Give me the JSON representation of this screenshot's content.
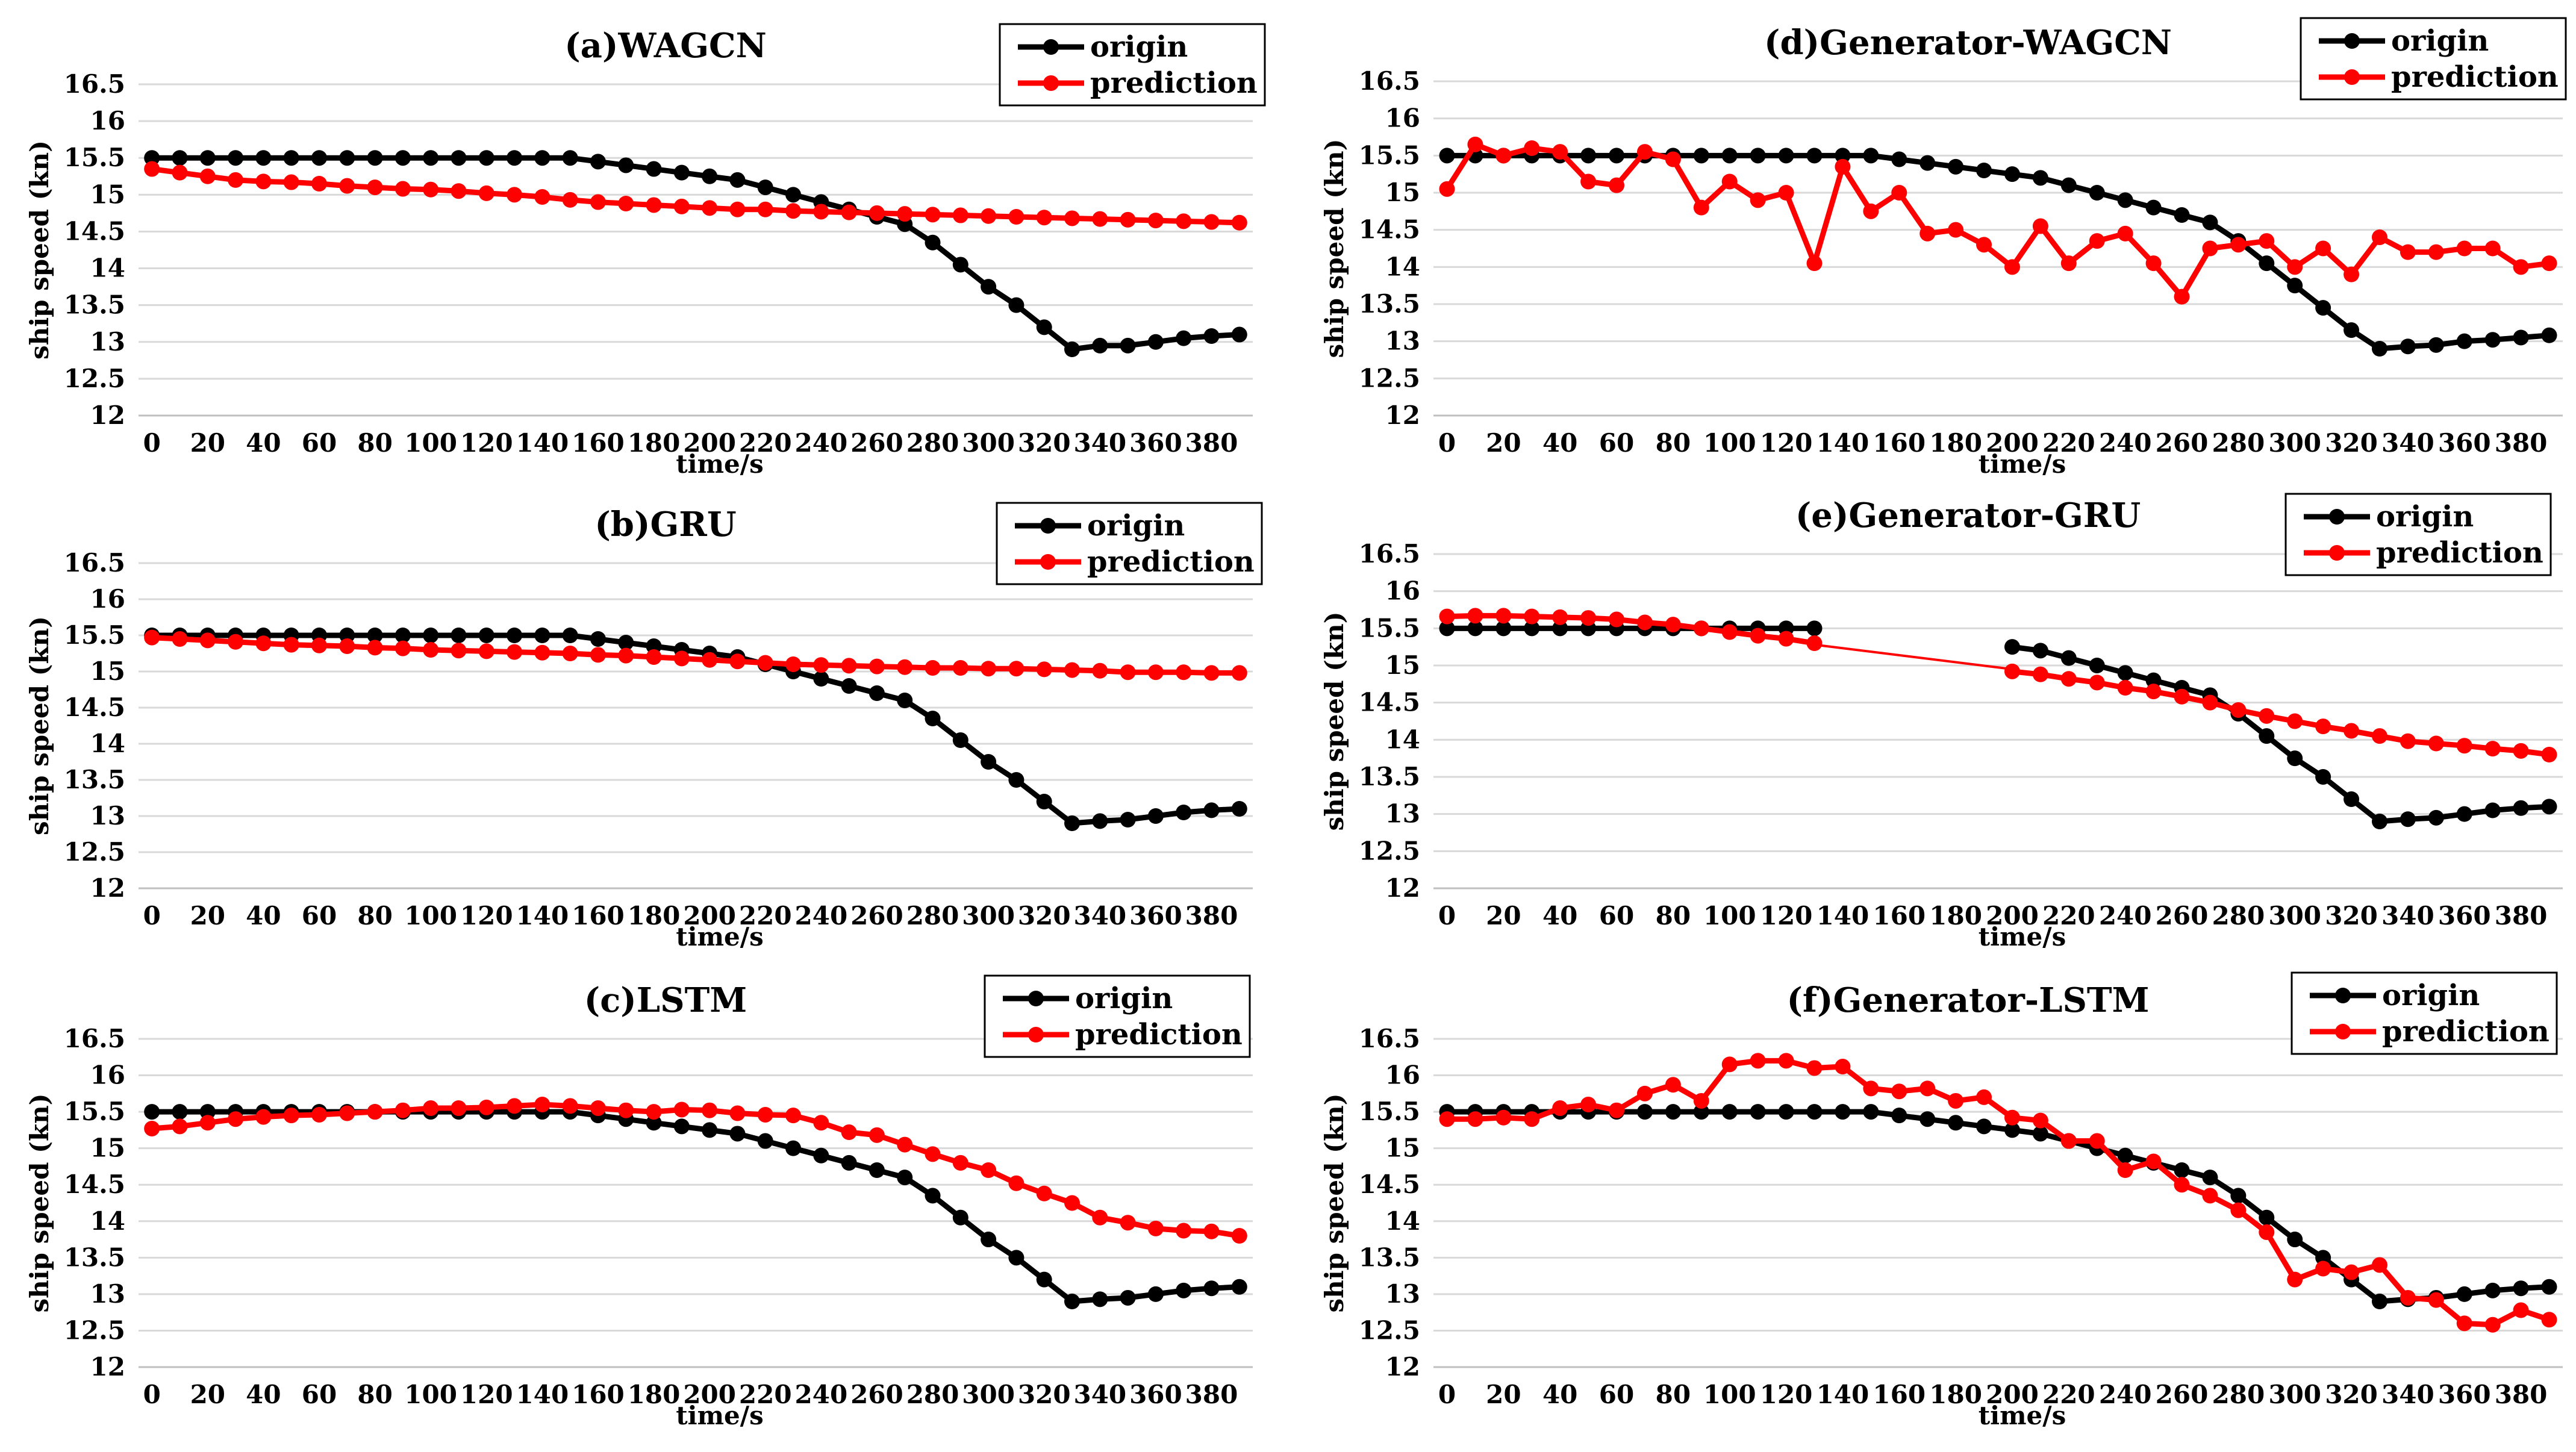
{
  "colors": {
    "origin": "#000000",
    "prediction": "#ff0000"
  },
  "chart_data": [
    {
      "type": "line",
      "title": "(a)WAGCN",
      "xlabel": "time/s",
      "ylabel": "ship speed (kn)",
      "ylim": [
        12,
        16.5
      ],
      "yticks": [
        "12",
        "12.5",
        "13",
        "13.5",
        "14",
        "14.5",
        "15",
        "15.5",
        "16",
        "16.5"
      ],
      "xtick_labels": [
        "0",
        "20",
        "40",
        "60",
        "80",
        "100",
        "120",
        "140",
        "160",
        "180",
        "200",
        "220",
        "240",
        "260",
        "280",
        "300",
        "320",
        "340",
        "360",
        "380"
      ],
      "grid": true,
      "legend": "top-right",
      "x": [
        0,
        10,
        20,
        30,
        40,
        50,
        60,
        70,
        80,
        90,
        100,
        110,
        120,
        130,
        140,
        150,
        160,
        170,
        180,
        190,
        200,
        210,
        220,
        230,
        240,
        250,
        260,
        270,
        280,
        290,
        300,
        310,
        320,
        330,
        340,
        350,
        360,
        370,
        380,
        390
      ],
      "series": [
        {
          "name": "origin",
          "values": [
            15.5,
            15.5,
            15.5,
            15.5,
            15.5,
            15.5,
            15.5,
            15.5,
            15.5,
            15.5,
            15.5,
            15.5,
            15.5,
            15.5,
            15.5,
            15.5,
            15.45,
            15.4,
            15.35,
            15.3,
            15.25,
            15.2,
            15.1,
            15.0,
            14.9,
            14.8,
            14.7,
            14.6,
            14.35,
            14.05,
            13.75,
            13.5,
            13.2,
            12.9,
            12.95,
            12.95,
            13.0,
            13.05,
            13.08,
            13.1
          ]
        },
        {
          "name": "prediction",
          "values": [
            15.35,
            15.3,
            15.25,
            15.2,
            15.18,
            15.17,
            15.15,
            15.12,
            15.1,
            15.08,
            15.07,
            15.05,
            15.02,
            15.0,
            14.97,
            14.93,
            14.9,
            14.88,
            14.86,
            14.84,
            14.82,
            14.8,
            14.8,
            14.78,
            14.77,
            14.76,
            14.75,
            14.74,
            14.73,
            14.72,
            14.71,
            14.7,
            14.69,
            14.68,
            14.67,
            14.66,
            14.65,
            14.64,
            14.63,
            14.62
          ]
        }
      ]
    },
    {
      "type": "line",
      "title": "(b)GRU",
      "xlabel": "time/s",
      "ylabel": "ship speed (kn)",
      "ylim": [
        12,
        16.5
      ],
      "yticks": [
        "12",
        "12.5",
        "13",
        "13.5",
        "14",
        "14.5",
        "15",
        "15.5",
        "16",
        "16.5"
      ],
      "xtick_labels": [
        "0",
        "20",
        "40",
        "60",
        "80",
        "100",
        "120",
        "140",
        "160",
        "180",
        "200",
        "220",
        "240",
        "260",
        "280",
        "300",
        "320",
        "340",
        "360",
        "380"
      ],
      "grid": true,
      "legend": "top-right",
      "x": [
        0,
        10,
        20,
        30,
        40,
        50,
        60,
        70,
        80,
        90,
        100,
        110,
        120,
        130,
        140,
        150,
        160,
        170,
        180,
        190,
        200,
        210,
        220,
        230,
        240,
        250,
        260,
        270,
        280,
        290,
        300,
        310,
        320,
        330,
        340,
        350,
        360,
        370,
        380,
        390
      ],
      "series": [
        {
          "name": "origin",
          "values": [
            15.5,
            15.5,
            15.5,
            15.5,
            15.5,
            15.5,
            15.5,
            15.5,
            15.5,
            15.5,
            15.5,
            15.5,
            15.5,
            15.5,
            15.5,
            15.5,
            15.45,
            15.4,
            15.35,
            15.3,
            15.25,
            15.2,
            15.1,
            15.0,
            14.9,
            14.8,
            14.7,
            14.6,
            14.35,
            14.05,
            13.75,
            13.5,
            13.2,
            12.9,
            12.93,
            12.95,
            13.0,
            13.05,
            13.08,
            13.1
          ]
        },
        {
          "name": "prediction",
          "values": [
            15.47,
            15.45,
            15.43,
            15.41,
            15.39,
            15.37,
            15.36,
            15.35,
            15.33,
            15.32,
            15.3,
            15.29,
            15.28,
            15.27,
            15.26,
            15.25,
            15.23,
            15.22,
            15.2,
            15.18,
            15.16,
            15.14,
            15.12,
            15.1,
            15.09,
            15.08,
            15.07,
            15.06,
            15.05,
            15.05,
            15.04,
            15.04,
            15.03,
            15.02,
            15.01,
            14.99,
            14.99,
            14.99,
            14.98,
            14.98
          ]
        }
      ]
    },
    {
      "type": "line",
      "title": "(c)LSTM",
      "xlabel": "time/s",
      "ylabel": "ship speed (kn)",
      "ylim": [
        12,
        16.5
      ],
      "yticks": [
        "12",
        "12.5",
        "13",
        "13.5",
        "14",
        "14.5",
        "15",
        "15.5",
        "16",
        "16.5"
      ],
      "xtick_labels": [
        "0",
        "20",
        "40",
        "60",
        "80",
        "100",
        "120",
        "140",
        "160",
        "180",
        "200",
        "220",
        "240",
        "260",
        "280",
        "300",
        "320",
        "340",
        "360",
        "380"
      ],
      "grid": true,
      "legend": "top-right",
      "x": [
        0,
        10,
        20,
        30,
        40,
        50,
        60,
        70,
        80,
        90,
        100,
        110,
        120,
        130,
        140,
        150,
        160,
        170,
        180,
        190,
        200,
        210,
        220,
        230,
        240,
        250,
        260,
        270,
        280,
        290,
        300,
        310,
        320,
        330,
        340,
        350,
        360,
        370,
        380,
        390
      ],
      "series": [
        {
          "name": "origin",
          "values": [
            15.5,
            15.5,
            15.5,
            15.5,
            15.5,
            15.5,
            15.5,
            15.5,
            15.5,
            15.5,
            15.5,
            15.5,
            15.5,
            15.5,
            15.5,
            15.5,
            15.45,
            15.4,
            15.35,
            15.3,
            15.25,
            15.2,
            15.1,
            15.0,
            14.9,
            14.8,
            14.7,
            14.6,
            14.35,
            14.05,
            13.75,
            13.5,
            13.2,
            12.9,
            12.93,
            12.95,
            13.0,
            13.05,
            13.08,
            13.1
          ]
        },
        {
          "name": "prediction",
          "values": [
            15.27,
            15.3,
            15.35,
            15.4,
            15.43,
            15.45,
            15.46,
            15.48,
            15.5,
            15.52,
            15.55,
            15.55,
            15.56,
            15.58,
            15.6,
            15.58,
            15.55,
            15.52,
            15.5,
            15.53,
            15.52,
            15.48,
            15.46,
            15.45,
            15.35,
            15.22,
            15.18,
            15.05,
            14.92,
            14.8,
            14.7,
            14.52,
            14.38,
            14.25,
            14.05,
            13.98,
            13.9,
            13.87,
            13.86,
            13.8
          ]
        }
      ]
    },
    {
      "type": "line",
      "title": "(d)Generator-WAGCN",
      "xlabel": "time/s",
      "ylabel": "ship speed (kn)",
      "ylim": [
        12,
        16.5
      ],
      "yticks": [
        "12",
        "12.5",
        "13",
        "13.5",
        "14",
        "14.5",
        "15",
        "15.5",
        "16",
        "16.5"
      ],
      "xtick_labels": [
        "0",
        "20",
        "40",
        "60",
        "80",
        "100",
        "120",
        "140",
        "160",
        "180",
        "200",
        "220",
        "240",
        "260",
        "280",
        "300",
        "320",
        "340",
        "360",
        "380"
      ],
      "grid": true,
      "legend": "top-right",
      "x": [
        0,
        10,
        20,
        30,
        40,
        50,
        60,
        70,
        80,
        90,
        100,
        110,
        120,
        130,
        140,
        150,
        160,
        170,
        180,
        190,
        200,
        210,
        220,
        230,
        240,
        250,
        260,
        270,
        280,
        290,
        300,
        310,
        320,
        330,
        340,
        350,
        360,
        370,
        380,
        390
      ],
      "series": [
        {
          "name": "origin",
          "values": [
            15.5,
            15.5,
            15.5,
            15.5,
            15.5,
            15.5,
            15.5,
            15.5,
            15.5,
            15.5,
            15.5,
            15.5,
            15.5,
            15.5,
            15.5,
            15.5,
            15.45,
            15.4,
            15.35,
            15.3,
            15.25,
            15.2,
            15.1,
            15.0,
            14.9,
            14.8,
            14.7,
            14.6,
            14.35,
            14.05,
            13.75,
            13.45,
            13.15,
            12.9,
            12.93,
            12.95,
            13.0,
            13.02,
            13.05,
            13.08
          ]
        },
        {
          "name": "prediction",
          "values": [
            15.05,
            15.65,
            15.5,
            15.6,
            15.55,
            15.15,
            15.1,
            15.55,
            15.45,
            14.8,
            15.15,
            14.9,
            15.0,
            14.05,
            15.35,
            14.75,
            15.0,
            14.45,
            14.5,
            14.3,
            14.0,
            14.55,
            14.05,
            14.35,
            14.45,
            14.05,
            13.6,
            14.25,
            14.3,
            14.35,
            14.0,
            14.25,
            13.9,
            14.4,
            14.2,
            14.2,
            14.25,
            14.25,
            14.0,
            14.05
          ]
        }
      ]
    },
    {
      "type": "line",
      "title": "(e)Generator-GRU",
      "xlabel": "time/s",
      "ylabel": "ship speed (kn)",
      "ylim": [
        12,
        16.5
      ],
      "yticks": [
        "12",
        "12.5",
        "13",
        "13.5",
        "14",
        "14.5",
        "15",
        "15.5",
        "16",
        "16.5"
      ],
      "xtick_labels": [
        "0",
        "20",
        "40",
        "60",
        "80",
        "100",
        "120",
        "140",
        "160",
        "180",
        "200",
        "220",
        "240",
        "260",
        "280",
        "300",
        "320",
        "340",
        "360",
        "380"
      ],
      "grid": true,
      "legend": "top-right",
      "x": [
        0,
        10,
        20,
        30,
        40,
        50,
        60,
        70,
        80,
        90,
        100,
        110,
        120,
        130,
        140,
        150,
        160,
        170,
        180,
        190,
        200,
        210,
        220,
        230,
        240,
        250,
        260,
        270,
        280,
        290,
        300,
        310,
        320,
        330,
        340,
        350,
        360,
        370,
        380,
        390
      ],
      "series": [
        {
          "name": "origin",
          "values": [
            15.5,
            15.5,
            15.5,
            15.5,
            15.5,
            15.5,
            15.5,
            15.5,
            15.5,
            15.5,
            15.5,
            15.5,
            15.5,
            15.5,
            null,
            null,
            null,
            null,
            null,
            null,
            15.25,
            15.2,
            15.1,
            15.0,
            14.9,
            14.8,
            14.7,
            14.6,
            14.35,
            14.05,
            13.75,
            13.5,
            13.2,
            12.9,
            12.93,
            12.95,
            13.0,
            13.05,
            13.08,
            13.1
          ]
        },
        {
          "name": "prediction",
          "values": [
            15.66,
            15.67,
            15.67,
            15.66,
            15.65,
            15.64,
            15.62,
            15.58,
            15.55,
            15.5,
            15.45,
            15.4,
            15.36,
            15.3,
            null,
            null,
            null,
            null,
            null,
            null,
            14.92,
            14.88,
            14.82,
            14.77,
            14.7,
            14.65,
            14.58,
            14.5,
            14.4,
            14.32,
            14.25,
            14.18,
            14.12,
            14.05,
            13.98,
            13.95,
            13.92,
            13.88,
            13.85,
            13.8
          ]
        }
      ],
      "link_segments": [
        {
          "x": [
            130,
            200
          ],
          "values": [
            15.28,
            14.95
          ]
        }
      ]
    },
    {
      "type": "line",
      "title": "(f)Generator-LSTM",
      "xlabel": "time/s",
      "ylabel": "ship speed (kn)",
      "ylim": [
        12,
        16.5
      ],
      "yticks": [
        "12",
        "12.5",
        "13",
        "13.5",
        "14",
        "14.5",
        "15",
        "15.5",
        "16",
        "16.5"
      ],
      "xtick_labels": [
        "0",
        "20",
        "40",
        "60",
        "80",
        "100",
        "120",
        "140",
        "160",
        "180",
        "200",
        "220",
        "240",
        "260",
        "280",
        "300",
        "320",
        "340",
        "360",
        "380"
      ],
      "grid": true,
      "legend": "top-right",
      "x": [
        0,
        10,
        20,
        30,
        40,
        50,
        60,
        70,
        80,
        90,
        100,
        110,
        120,
        130,
        140,
        150,
        160,
        170,
        180,
        190,
        200,
        210,
        220,
        230,
        240,
        250,
        260,
        270,
        280,
        290,
        300,
        310,
        320,
        330,
        340,
        350,
        360,
        370,
        380,
        390
      ],
      "series": [
        {
          "name": "origin",
          "values": [
            15.5,
            15.5,
            15.5,
            15.5,
            15.5,
            15.5,
            15.5,
            15.5,
            15.5,
            15.5,
            15.5,
            15.5,
            15.5,
            15.5,
            15.5,
            15.5,
            15.45,
            15.4,
            15.35,
            15.3,
            15.25,
            15.2,
            15.1,
            15.0,
            14.9,
            14.8,
            14.7,
            14.6,
            14.35,
            14.05,
            13.75,
            13.5,
            13.2,
            12.9,
            12.93,
            12.95,
            13.0,
            13.05,
            13.08,
            13.1
          ]
        },
        {
          "name": "prediction",
          "values": [
            15.4,
            15.4,
            15.42,
            15.4,
            15.55,
            15.6,
            15.52,
            15.75,
            15.87,
            15.65,
            16.15,
            16.2,
            16.2,
            16.1,
            16.12,
            15.82,
            15.78,
            15.82,
            15.65,
            15.7,
            15.42,
            15.38,
            15.1,
            15.1,
            14.7,
            14.82,
            14.5,
            14.35,
            14.15,
            13.85,
            13.2,
            13.35,
            13.3,
            13.4,
            12.95,
            12.92,
            12.6,
            12.58,
            12.78,
            12.65
          ]
        }
      ]
    }
  ]
}
